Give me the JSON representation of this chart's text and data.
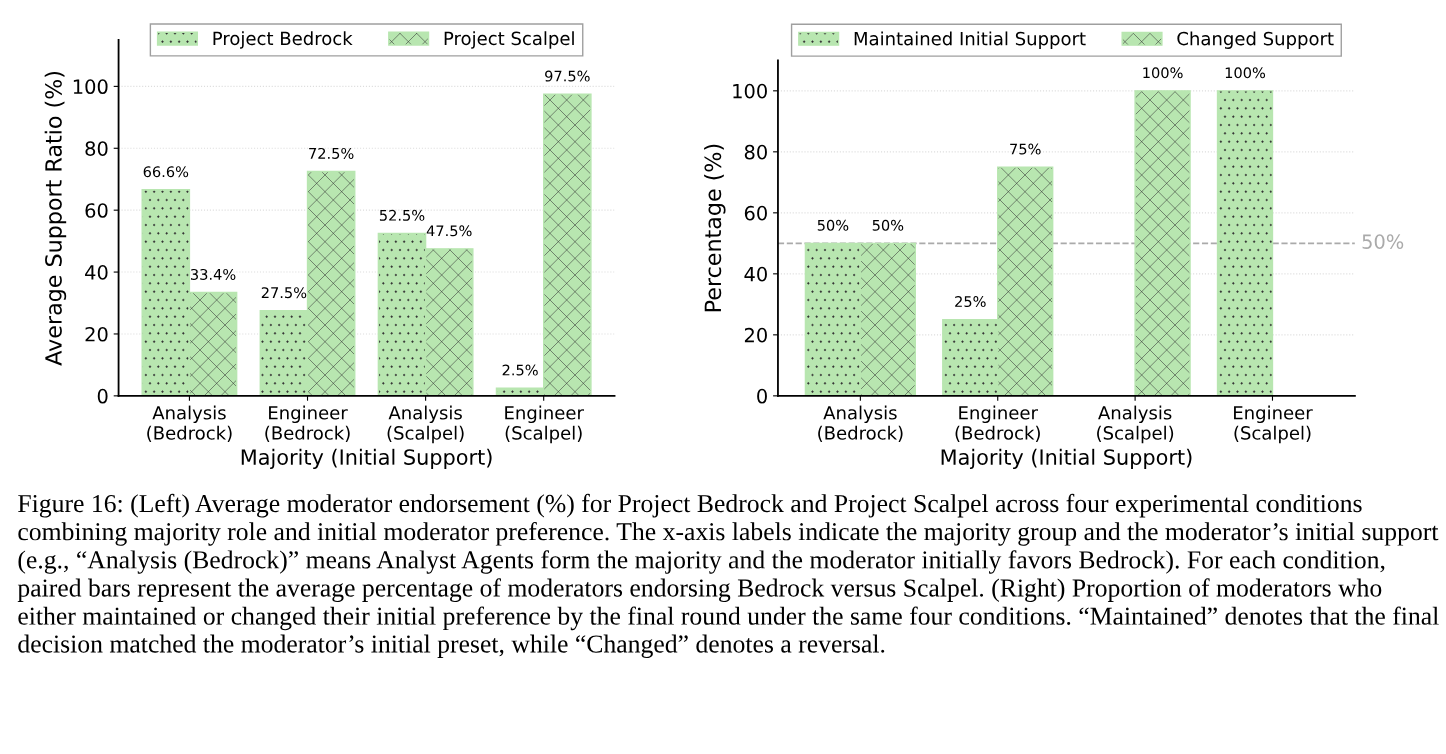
{
  "chart_data": [
    {
      "type": "bar",
      "xlabel": "Majority (Initial Support)",
      "ylabel": "Average Support Ratio (%)",
      "categories": [
        "Analysis\n(Bedrock)",
        "Engineer\n(Bedrock)",
        "Analysis\n(Scalpel)",
        "Engineer\n(Scalpel)"
      ],
      "series": [
        {
          "name": "Project Bedrock",
          "color": "#b8e6b0",
          "values": [
            66.6,
            27.5,
            52.5,
            2.5
          ],
          "value_labels": [
            "66.6%",
            "27.5%",
            "52.5%",
            "2.5%"
          ]
        },
        {
          "name": "Project Scalpel",
          "color": "#b8e6b0",
          "values": [
            33.4,
            72.5,
            47.5,
            97.5
          ],
          "value_labels": [
            "33.4%",
            "72.5%",
            "47.5%",
            "97.5%"
          ]
        }
      ],
      "ylim": [
        0,
        115
      ],
      "yticks": [
        0,
        20,
        40,
        60,
        80,
        100
      ],
      "grid": "y",
      "legend": "top",
      "annotations": [
        "Figure 16: (Left) Average moderator endorsement (%) for Project Bedrock and Project Scalpel across four experimental conditions combining majority role and initial moderator preference. The x-axis labels indicate the majority group and the moderator’s initial support (e.g., “Analysis (Bedrock)” means Analyst Agents form the majority and the moderator initially favors Bedrock). For each condition, paired bars represent the average percentage of moderators endorsing Bedrock versus Scalpel. (Right) Proportion of moderators who either maintained or changed their initial preference by the final round under the same four conditions. “Maintained” denotes that the final decision matched the moderator’s initial preset, while “Changed” denotes a reversal."
      ]
    },
    {
      "type": "bar",
      "xlabel": "Majority (Initial Support)",
      "ylabel": "Percentage (%)",
      "categories": [
        "Analysis\n(Bedrock)",
        "Engineer\n(Bedrock)",
        "Analysis\n(Scalpel)",
        "Engineer\n(Scalpel)"
      ],
      "series": [
        {
          "name": "Maintained Initial Support",
          "color": "#b8e6b0",
          "values": [
            50,
            25,
            0,
            100
          ],
          "value_labels": [
            "50%",
            "25%",
            null,
            "100%"
          ]
        },
        {
          "name": "Changed Support",
          "color": "#b8e6b0",
          "values": [
            50,
            75,
            100,
            0
          ],
          "value_labels": [
            "50%",
            "75%",
            "100%",
            null
          ]
        }
      ],
      "ylim": [
        0,
        110
      ],
      "yticks": [
        0,
        20,
        40,
        60,
        80,
        100
      ],
      "grid": "y",
      "legend": "top",
      "ref_lines": [
        {
          "axis": "y",
          "value": 50,
          "label": "50%",
          "color": "#aaaaaa",
          "line_style": "dashed"
        }
      ]
    }
  ]
}
